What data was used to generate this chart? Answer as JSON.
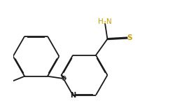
{
  "bg_color": "#ffffff",
  "bond_color": "#1a1a1a",
  "n_color": "#1a1a1a",
  "o_color": "#1a1a1a",
  "s_color": "#c8a000",
  "h2n_color": "#c8a000",
  "lw": 1.3,
  "dbo": 0.025,
  "figsize": [
    2.51,
    1.54
  ],
  "dpi": 100,
  "xlim": [
    -1.0,
    5.5
  ],
  "ylim": [
    -2.2,
    2.4
  ]
}
